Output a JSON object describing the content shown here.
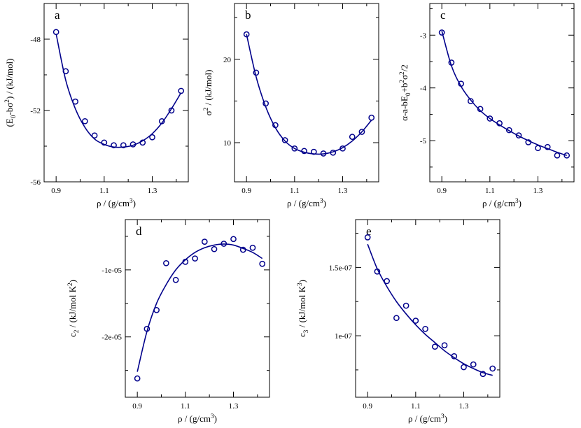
{
  "figure": {
    "series_color": "#00008b",
    "axis_color": "#000000"
  },
  "chart_data": [
    {
      "id": "a",
      "type": "scatter",
      "panel_letter": "a",
      "xlabel": "ρ / (g/cm3)",
      "xlabel_parts": {
        "main": "ρ / (g/cm",
        "sup": "3",
        "tail": ")"
      },
      "ylabel": "(E0-bσ2) / (kJ/mol)",
      "xlim": [
        0.85,
        1.45
      ],
      "ylim": [
        -56,
        -46
      ],
      "xticks": [
        0.9,
        1.1,
        1.3
      ],
      "xtick_labels": [
        "0.9",
        "1.1",
        "1.3"
      ],
      "xminor": [
        1.0,
        1.2,
        1.4
      ],
      "yticks": [
        -56,
        -52,
        -48
      ],
      "ytick_labels": [
        "-56",
        "-52",
        "-48"
      ],
      "yminor": [
        -54,
        -50,
        -46
      ],
      "points": {
        "x": [
          0.9,
          0.94,
          0.98,
          1.02,
          1.06,
          1.1,
          1.14,
          1.18,
          1.22,
          1.26,
          1.3,
          1.34,
          1.38,
          1.42
        ],
        "y": [
          -47.6,
          -49.8,
          -51.5,
          -52.6,
          -53.4,
          -53.8,
          -53.95,
          -53.95,
          -53.9,
          -53.8,
          -53.5,
          -52.6,
          -52.0,
          -50.9
        ]
      },
      "fit_curve": {
        "x": [
          0.9,
          0.94,
          0.98,
          1.02,
          1.06,
          1.1,
          1.14,
          1.18,
          1.22,
          1.26,
          1.3,
          1.34,
          1.38,
          1.42
        ],
        "y": [
          -47.7,
          -50.3,
          -51.9,
          -52.95,
          -53.6,
          -53.9,
          -54.05,
          -54.05,
          -53.95,
          -53.7,
          -53.3,
          -52.7,
          -51.9,
          -51.0
        ]
      }
    },
    {
      "id": "b",
      "type": "scatter",
      "panel_letter": "b",
      "xlabel": "ρ / (g/cm3)",
      "xlabel_parts": {
        "main": "ρ / (g/cm",
        "sup": "3",
        "tail": ")"
      },
      "ylabel": "σ2 / (kJ/mol)",
      "xlim": [
        0.85,
        1.45
      ],
      "ylim": [
        5.3,
        26.7
      ],
      "xticks": [
        0.9,
        1.1,
        1.3
      ],
      "xtick_labels": [
        "0.9",
        "1.1",
        "1.3"
      ],
      "xminor": [
        1.0,
        1.2,
        1.4
      ],
      "yticks": [
        10,
        20
      ],
      "ytick_labels": [
        "10",
        "20"
      ],
      "yminor": [
        15,
        25
      ],
      "points": {
        "x": [
          0.9,
          0.94,
          0.98,
          1.02,
          1.06,
          1.1,
          1.14,
          1.18,
          1.22,
          1.26,
          1.3,
          1.34,
          1.38,
          1.42
        ],
        "y": [
          23.0,
          18.4,
          14.7,
          12.1,
          10.3,
          9.3,
          9.0,
          8.9,
          8.7,
          8.8,
          9.3,
          10.7,
          11.3,
          13.0
        ]
      },
      "fit_curve": {
        "x": [
          0.9,
          0.94,
          0.98,
          1.02,
          1.06,
          1.1,
          1.14,
          1.18,
          1.22,
          1.26,
          1.3,
          1.34,
          1.38,
          1.42
        ],
        "y": [
          23.0,
          17.9,
          14.3,
          11.8,
          10.2,
          9.3,
          8.85,
          8.65,
          8.65,
          8.9,
          9.4,
          10.2,
          11.3,
          12.7
        ]
      }
    },
    {
      "id": "c",
      "type": "scatter",
      "panel_letter": "c",
      "xlabel": "ρ / (g/cm3)",
      "xlabel_parts": {
        "main": "ρ / (g/cm",
        "sup": "3",
        "tail": ")"
      },
      "ylabel": "α-a-bE0+b2σ2/2",
      "xlim": [
        0.85,
        1.45
      ],
      "ylim": [
        -5.78,
        -2.4
      ],
      "xticks": [
        0.9,
        1.1,
        1.3
      ],
      "xtick_labels": [
        "0.9",
        "1.1",
        "1.3"
      ],
      "xminor": [
        1.0,
        1.2,
        1.4
      ],
      "yticks": [
        -5,
        -4,
        -3
      ],
      "ytick_labels": [
        "-5",
        "-4",
        "-3"
      ],
      "yminor": [
        -5.5,
        -4.5,
        -3.5,
        -2.5
      ],
      "points": {
        "x": [
          0.9,
          0.94,
          0.98,
          1.02,
          1.06,
          1.1,
          1.14,
          1.18,
          1.22,
          1.26,
          1.3,
          1.34,
          1.38,
          1.42
        ],
        "y": [
          -2.95,
          -3.52,
          -3.92,
          -4.25,
          -4.4,
          -4.58,
          -4.67,
          -4.8,
          -4.9,
          -5.03,
          -5.14,
          -5.12,
          -5.28,
          -5.28
        ]
      },
      "fit_curve": {
        "x": [
          0.9,
          0.94,
          0.98,
          1.02,
          1.06,
          1.1,
          1.14,
          1.18,
          1.22,
          1.26,
          1.3,
          1.34,
          1.38,
          1.42
        ],
        "y": [
          -2.92,
          -3.58,
          -3.97,
          -4.23,
          -4.43,
          -4.58,
          -4.7,
          -4.81,
          -4.91,
          -5.0,
          -5.08,
          -5.15,
          -5.22,
          -5.28
        ]
      }
    },
    {
      "id": "d",
      "type": "scatter",
      "panel_letter": "d",
      "xlabel": "ρ / (g/cm3)",
      "xlabel_parts": {
        "main": "ρ / (g/cm",
        "sup": "3",
        "tail": ")"
      },
      "ylabel": "c2 / (kJ/mol K2)",
      "xlim": [
        0.85,
        1.45
      ],
      "ylim": [
        -2.9e-05,
        -2.5e-06
      ],
      "xticks": [
        0.9,
        1.1,
        1.3
      ],
      "xtick_labels": [
        "0.9",
        "1.1",
        "1.3"
      ],
      "xminor": [
        1.0,
        1.2,
        1.4
      ],
      "yticks": [
        -2e-05,
        -1e-05
      ],
      "ytick_labels": [
        "-2e-05",
        "-1e-05"
      ],
      "yminor": [
        -2.5e-05,
        -1.5e-05,
        -5e-06
      ],
      "points": {
        "x": [
          0.9,
          0.94,
          0.98,
          1.02,
          1.06,
          1.1,
          1.14,
          1.18,
          1.22,
          1.26,
          1.3,
          1.34,
          1.38,
          1.42
        ],
        "y": [
          -2.62e-05,
          -1.88e-05,
          -1.6e-05,
          -9e-06,
          -1.15e-05,
          -8.8e-06,
          -8.3e-06,
          -5.8e-06,
          -6.9e-06,
          -6.1e-06,
          -5.4e-06,
          -7e-06,
          -6.7e-06,
          -9.1e-06
        ]
      },
      "fit_curve": {
        "x": [
          0.9,
          0.94,
          0.98,
          1.02,
          1.06,
          1.1,
          1.14,
          1.18,
          1.22,
          1.26,
          1.3,
          1.34,
          1.38,
          1.42
        ],
        "y": [
          -2.52e-05,
          -1.92e-05,
          -1.5e-05,
          -1.22e-05,
          -1e-05,
          -8.5e-06,
          -7.4e-06,
          -6.7e-06,
          -6.3e-06,
          -6.15e-06,
          -6.3e-06,
          -6.8e-06,
          -7.4e-06,
          -8.3e-06
        ]
      }
    },
    {
      "id": "e",
      "type": "scatter",
      "panel_letter": "e",
      "xlabel": "ρ / (g/cm3)",
      "xlabel_parts": {
        "main": "ρ / (g/cm",
        "sup": "3",
        "tail": ")"
      },
      "ylabel": "c3 / (kJ/mol K3)",
      "xlim": [
        0.85,
        1.45
      ],
      "ylim": [
        5.5e-08,
        1.85e-07
      ],
      "xticks": [
        0.9,
        1.1,
        1.3
      ],
      "xtick_labels": [
        "0.9",
        "1.1",
        "1.3"
      ],
      "xminor": [
        1.0,
        1.2,
        1.4
      ],
      "yticks": [
        1e-07,
        1.5e-07
      ],
      "ytick_labels": [
        "1e-07",
        "1.5e-07"
      ],
      "yminor": [
        7.5e-08,
        1.25e-07,
        1.75e-07
      ],
      "points": {
        "x": [
          0.9,
          0.94,
          0.98,
          1.02,
          1.06,
          1.1,
          1.14,
          1.18,
          1.22,
          1.26,
          1.3,
          1.34,
          1.38,
          1.42
        ],
        "y": [
          1.72e-07,
          1.47e-07,
          1.4e-07,
          1.13e-07,
          1.22e-07,
          1.11e-07,
          1.05e-07,
          9.2e-08,
          9.3e-08,
          8.5e-08,
          7.7e-08,
          7.9e-08,
          7.2e-08,
          7.6e-08
        ]
      },
      "fit_curve": {
        "x": [
          0.9,
          0.94,
          0.98,
          1.02,
          1.06,
          1.1,
          1.14,
          1.18,
          1.22,
          1.26,
          1.3,
          1.34,
          1.38,
          1.42
        ],
        "y": [
          1.67e-07,
          1.49e-07,
          1.36e-07,
          1.25e-07,
          1.16e-07,
          1.08e-07,
          1.01e-07,
          9.5e-08,
          8.9e-08,
          8.4e-08,
          7.95e-08,
          7.6e-08,
          7.3e-08,
          7.1e-08
        ]
      }
    }
  ]
}
